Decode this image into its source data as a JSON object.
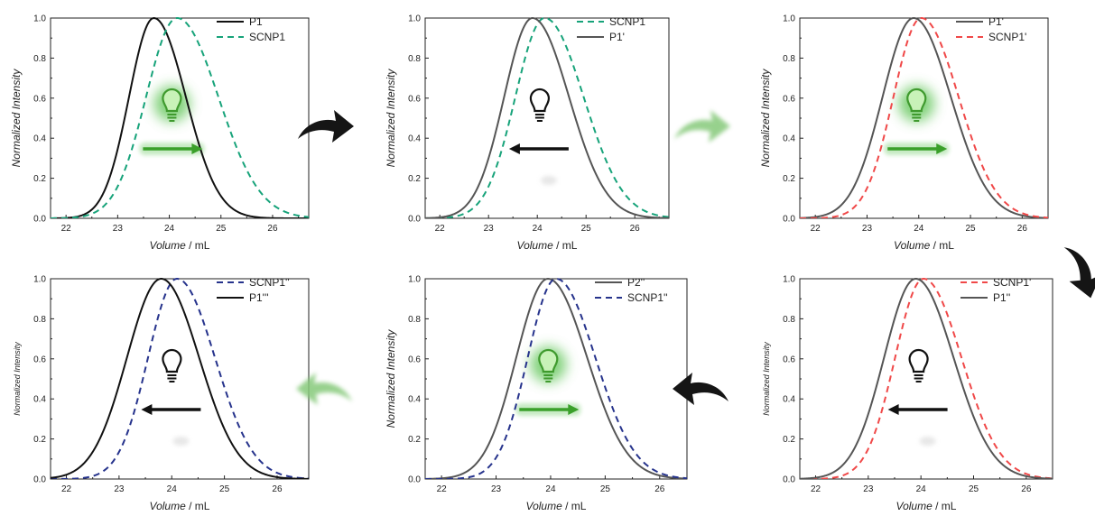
{
  "colors": {
    "black": "#111111",
    "gray": "#555555",
    "green": "#17a37a",
    "red": "#f04848",
    "blue": "#26338c",
    "light_green": "#59c24f",
    "arrow_dark": "#151515",
    "arrow_light": "#86c97a"
  },
  "arrows": [
    {
      "label": "black-curved-arrow-1",
      "shade": "dark"
    },
    {
      "label": "green-curved-arrow-1",
      "shade": "light"
    },
    {
      "label": "black-curved-arrow-2",
      "shade": "dark"
    },
    {
      "label": "green-curved-arrow-2",
      "shade": "light"
    },
    {
      "label": "black-curved-arrow-3",
      "shade": "dark"
    }
  ],
  "chart_data": [
    {
      "type": "line",
      "xlabel": "Volume / mL",
      "ylabel": "Normalized Intensity",
      "xlim": [
        21.7,
        26.7
      ],
      "ylim": [
        0,
        1.0
      ],
      "xticks": [
        "22",
        "23",
        "24",
        "25",
        "26"
      ],
      "yticks": [
        "0.0",
        "0.2",
        "0.4",
        "0.6",
        "0.8",
        "1.0"
      ],
      "legend_position": "top-right",
      "indicator": {
        "icon": "lightbulb-on-icon",
        "direction": "right"
      },
      "series": [
        {
          "name": "P1",
          "color": "black",
          "dash": "solid",
          "peak": 23.7,
          "sigma_left": 0.48,
          "sigma_right": 0.62
        },
        {
          "name": "SCNP1",
          "color": "green",
          "dash": "dashed",
          "peak": 24.15,
          "sigma_left": 0.6,
          "sigma_right": 0.8
        }
      ]
    },
    {
      "type": "line",
      "xlabel": "Volume / mL",
      "ylabel": "Normalized Intensity",
      "xlim": [
        21.7,
        26.7
      ],
      "ylim": [
        0,
        1.0
      ],
      "xticks": [
        "22",
        "23",
        "24",
        "25",
        "26"
      ],
      "yticks": [
        "0.0",
        "0.2",
        "0.4",
        "0.6",
        "0.8",
        "1.0"
      ],
      "legend_position": "top-right",
      "indicator": {
        "icon": "lightbulb-off-icon",
        "direction": "left"
      },
      "series": [
        {
          "name": "SCNP1",
          "color": "green",
          "dash": "dashed",
          "peak": 24.15,
          "sigma_left": 0.6,
          "sigma_right": 0.8
        },
        {
          "name": "P1'",
          "color": "gray",
          "dash": "solid",
          "peak": 23.9,
          "sigma_left": 0.58,
          "sigma_right": 0.75
        }
      ]
    },
    {
      "type": "line",
      "xlabel": "Volume / mL",
      "ylabel": "Normalized Intensity",
      "xlim": [
        21.7,
        26.5
      ],
      "ylim": [
        0,
        1.0
      ],
      "xticks": [
        "22",
        "23",
        "24",
        "25",
        "26"
      ],
      "yticks": [
        "0.0",
        "0.2",
        "0.4",
        "0.6",
        "0.8",
        "1.0"
      ],
      "legend_position": "top-right",
      "indicator": {
        "icon": "lightbulb-on-icon",
        "direction": "right"
      },
      "series": [
        {
          "name": "P1'",
          "color": "gray",
          "dash": "solid",
          "peak": 23.9,
          "sigma_left": 0.6,
          "sigma_right": 0.72
        },
        {
          "name": "SCNP1'",
          "color": "red",
          "dash": "dashed",
          "peak": 24.05,
          "sigma_left": 0.54,
          "sigma_right": 0.72
        }
      ]
    },
    {
      "type": "line",
      "xlabel": "Volume / mL",
      "ylabel": "Normalized Intensity",
      "xlim": [
        21.7,
        26.6
      ],
      "ylim": [
        0,
        1.0
      ],
      "xticks": [
        "22",
        "23",
        "24",
        "25",
        "26"
      ],
      "yticks": [
        "0.0",
        "0.2",
        "0.4",
        "0.6",
        "0.8",
        "1.0"
      ],
      "legend_position": "top-right",
      "indicator": {
        "icon": "lightbulb-off-icon",
        "direction": "left"
      },
      "series": [
        {
          "name": "SCNP1''",
          "color": "blue",
          "dash": "dashed",
          "peak": 24.1,
          "sigma_left": 0.55,
          "sigma_right": 0.72
        },
        {
          "name": "P1'''",
          "color": "black",
          "dash": "solid",
          "peak": 23.8,
          "sigma_left": 0.65,
          "sigma_right": 0.72
        }
      ]
    },
    {
      "type": "line",
      "xlabel": "Volume / mL",
      "ylabel": "Normalized Intensity",
      "xlim": [
        21.7,
        26.5
      ],
      "ylim": [
        0,
        1.0
      ],
      "xticks": [
        "22",
        "23",
        "24",
        "25",
        "26"
      ],
      "yticks": [
        "0.0",
        "0.2",
        "0.4",
        "0.6",
        "0.8",
        "1.0"
      ],
      "legend_position": "top-right",
      "indicator": {
        "icon": "lightbulb-on-icon",
        "direction": "right"
      },
      "series": [
        {
          "name": "P2''",
          "color": "gray",
          "dash": "solid",
          "peak": 23.95,
          "sigma_left": 0.58,
          "sigma_right": 0.72
        },
        {
          "name": "SCNP1''",
          "color": "blue",
          "dash": "dashed",
          "peak": 24.1,
          "sigma_left": 0.52,
          "sigma_right": 0.72
        }
      ]
    },
    {
      "type": "line",
      "xlabel": "Volume / mL",
      "ylabel": "Normalized Intensity",
      "xlim": [
        21.7,
        26.5
      ],
      "ylim": [
        0,
        1.0
      ],
      "xticks": [
        "22",
        "23",
        "24",
        "25",
        "26"
      ],
      "yticks": [
        "0.0",
        "0.2",
        "0.4",
        "0.6",
        "0.8",
        "1.0"
      ],
      "legend_position": "top-right",
      "indicator": {
        "icon": "lightbulb-off-icon",
        "direction": "left"
      },
      "series": [
        {
          "name": "SCNP1'",
          "color": "red",
          "dash": "dashed",
          "peak": 24.05,
          "sigma_left": 0.54,
          "sigma_right": 0.72
        },
        {
          "name": "P1''",
          "color": "gray",
          "dash": "solid",
          "peak": 23.9,
          "sigma_left": 0.6,
          "sigma_right": 0.72
        }
      ]
    }
  ]
}
